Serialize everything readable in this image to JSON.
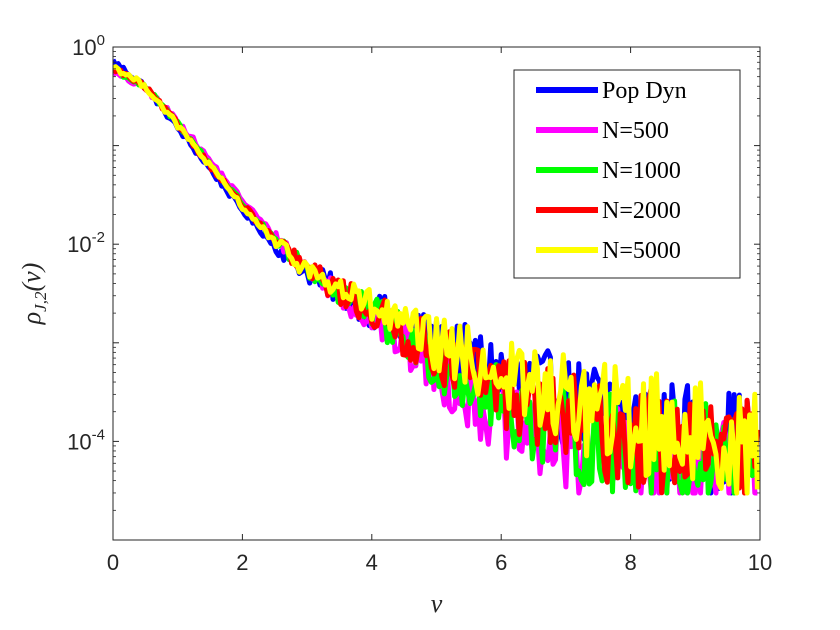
{
  "chart_data": {
    "type": "line",
    "title": "",
    "xlabel": "v",
    "ylabel": "ρ_{J,2}(v)",
    "x_scale": "linear",
    "y_scale": "log",
    "xlim": [
      0,
      10
    ],
    "ylim": [
      1e-05,
      1
    ],
    "x_ticks": [
      0,
      2,
      4,
      6,
      8,
      10
    ],
    "x_tick_labels": [
      "0",
      "2",
      "4",
      "6",
      "8",
      "10"
    ],
    "y_ticks": [
      0.0001,
      0.01,
      1
    ],
    "y_tick_labels": [
      {
        "base": "10",
        "exp": "-4"
      },
      {
        "base": "10",
        "exp": "-2"
      },
      {
        "base": "10",
        "exp": "0"
      }
    ],
    "grid": false,
    "legend_position": "top-right",
    "series": [
      {
        "name": "Pop Dyn",
        "color": "#0000ff",
        "noise_floor": 3e-05,
        "points": [
          [
            0,
            0.72
          ],
          [
            0.5,
            0.4
          ],
          [
            1,
            0.15
          ],
          [
            1.5,
            0.058
          ],
          [
            2,
            0.022
          ],
          [
            2.5,
            0.0095
          ],
          [
            3,
            0.0052
          ],
          [
            3.5,
            0.0033
          ],
          [
            4,
            0.0022
          ],
          [
            4.5,
            0.0014
          ],
          [
            5,
            0.00095
          ],
          [
            5.5,
            0.0007
          ],
          [
            6,
            0.00048
          ],
          [
            6.5,
            0.00035
          ],
          [
            7,
            0.00025
          ],
          [
            7.5,
            0.0002
          ],
          [
            8,
            0.00016
          ],
          [
            8.5,
            0.00013
          ],
          [
            9,
            0.00011
          ],
          [
            9.5,
            0.0001
          ],
          [
            10,
            9e-05
          ]
        ]
      },
      {
        "name": "N=500",
        "color": "#ff00ff",
        "noise_floor": 3e-05,
        "points": [
          [
            0,
            0.55
          ],
          [
            0.5,
            0.38
          ],
          [
            1,
            0.18
          ],
          [
            1.5,
            0.07
          ],
          [
            2,
            0.028
          ],
          [
            2.5,
            0.012
          ],
          [
            3,
            0.0058
          ],
          [
            3.5,
            0.0032
          ],
          [
            4,
            0.0018
          ],
          [
            4.5,
            0.00095
          ],
          [
            5,
            0.0005
          ],
          [
            5.5,
            0.00028
          ],
          [
            6,
            0.00016
          ],
          [
            6.5,
            0.0001
          ],
          [
            7,
            8e-05
          ],
          [
            7.5,
            7e-05
          ],
          [
            8,
            6e-05
          ],
          [
            8.5,
            6e-05
          ],
          [
            9,
            5e-05
          ],
          [
            9.5,
            5e-05
          ],
          [
            10,
            5e-05
          ]
        ]
      },
      {
        "name": "N=1000",
        "color": "#00ff00",
        "noise_floor": 3e-05,
        "points": [
          [
            0,
            0.6
          ],
          [
            0.5,
            0.39
          ],
          [
            1,
            0.17
          ],
          [
            1.5,
            0.065
          ],
          [
            2,
            0.026
          ],
          [
            2.5,
            0.011
          ],
          [
            3,
            0.0056
          ],
          [
            3.5,
            0.0033
          ],
          [
            4,
            0.002
          ],
          [
            4.5,
            0.0011
          ],
          [
            5,
            0.00065
          ],
          [
            5.5,
            0.0004
          ],
          [
            6,
            0.00024
          ],
          [
            6.5,
            0.00016
          ],
          [
            7,
            0.00012
          ],
          [
            7.5,
            0.0001
          ],
          [
            8,
            9e-05
          ],
          [
            8.5,
            8e-05
          ],
          [
            9,
            7e-05
          ],
          [
            9.5,
            7e-05
          ],
          [
            10,
            6e-05
          ]
        ]
      },
      {
        "name": "N=2000",
        "color": "#ff0000",
        "noise_floor": 3e-05,
        "points": [
          [
            0,
            0.62
          ],
          [
            0.5,
            0.39
          ],
          [
            1,
            0.165
          ],
          [
            1.5,
            0.063
          ],
          [
            2,
            0.025
          ],
          [
            2.5,
            0.011
          ],
          [
            3,
            0.0055
          ],
          [
            3.5,
            0.0034
          ],
          [
            4,
            0.0021
          ],
          [
            4.5,
            0.0012
          ],
          [
            5,
            0.0008
          ],
          [
            5.5,
            0.00052
          ],
          [
            6,
            0.00034
          ],
          [
            6.5,
            0.00024
          ],
          [
            7,
            0.00017
          ],
          [
            7.5,
            0.00013
          ],
          [
            8,
            0.00011
          ],
          [
            8.5,
            0.0001
          ],
          [
            9,
            9e-05
          ],
          [
            9.5,
            8e-05
          ],
          [
            10,
            7e-05
          ]
        ]
      },
      {
        "name": "N=5000",
        "color": "#ffff00",
        "noise_floor": 3e-05,
        "points": [
          [
            0,
            0.64
          ],
          [
            0.5,
            0.4
          ],
          [
            1,
            0.16
          ],
          [
            1.5,
            0.062
          ],
          [
            2,
            0.024
          ],
          [
            2.5,
            0.0105
          ],
          [
            3,
            0.0055
          ],
          [
            3.5,
            0.0035
          ],
          [
            4,
            0.0023
          ],
          [
            4.5,
            0.0014
          ],
          [
            5,
            0.00095
          ],
          [
            5.5,
            0.00068
          ],
          [
            6,
            0.00048
          ],
          [
            6.5,
            0.00035
          ],
          [
            7,
            0.00026
          ],
          [
            7.5,
            0.0002
          ],
          [
            8,
            0.00016
          ],
          [
            8.5,
            0.00014
          ],
          [
            9,
            0.00012
          ],
          [
            9.5,
            0.0001
          ],
          [
            10,
            9e-05
          ]
        ]
      }
    ]
  }
}
